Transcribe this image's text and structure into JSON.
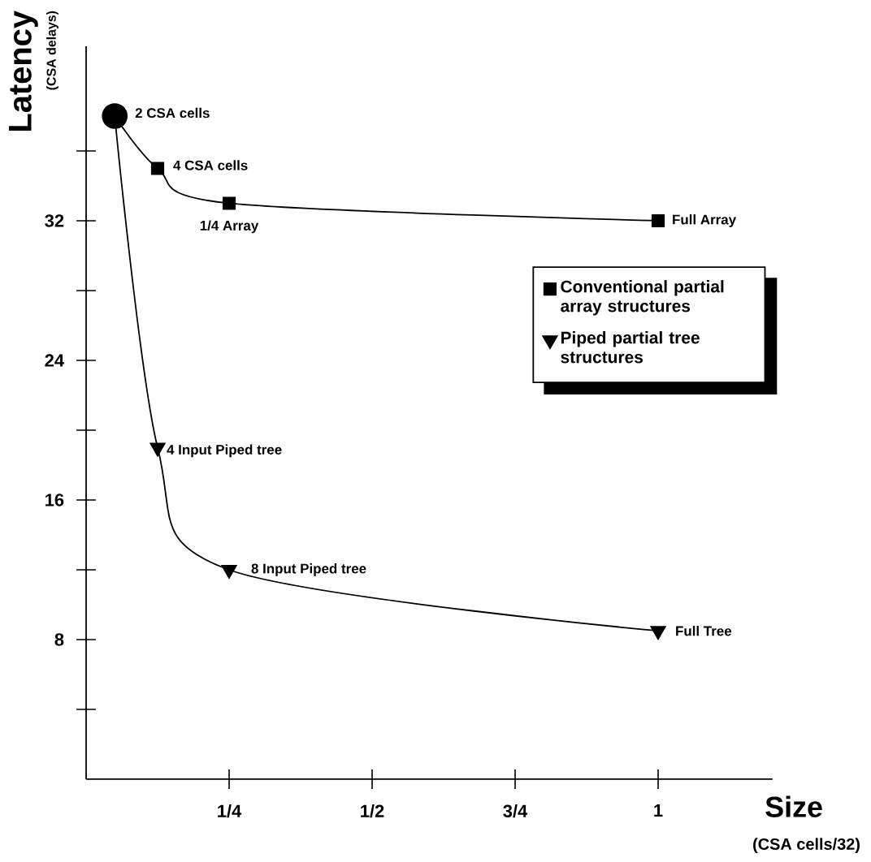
{
  "chart_data": {
    "type": "line",
    "xlabel": "Size",
    "ylabel": "Latency",
    "xlim": [
      0,
      1.2
    ],
    "ylim": [
      0,
      42
    ],
    "xticks": [
      {
        "value": 0.25,
        "label": "1/4"
      },
      {
        "value": 0.5,
        "label": "1/2"
      },
      {
        "value": 0.75,
        "label": "3/4"
      },
      1
    ],
    "yticks": [
      {
        "value": 4,
        "label": null
      },
      8,
      {
        "value": 12,
        "label": null
      },
      16,
      {
        "value": 20,
        "label": null
      },
      24,
      {
        "value": 28,
        "label": null
      },
      32,
      {
        "value": 36,
        "label": null
      }
    ],
    "series": [
      {
        "name": "Conventional partial array structures",
        "color": "#000000",
        "marker": "square",
        "x": [
          0.05,
          0.125,
          0.25,
          1
        ],
        "values": [
          38,
          35,
          33,
          32
        ]
      },
      {
        "name": "Piped partial tree structures",
        "color": "#000000",
        "marker": "triangle",
        "x": [
          0.05,
          0.125,
          0.25,
          1
        ],
        "values": [
          38,
          19,
          12,
          8.5
        ]
      },
      {
        "type": "scatter",
        "color": "#000000",
        "marker": "circle",
        "x": [
          0.05
        ],
        "values": [
          38
        ]
      }
    ],
    "legend": "right",
    "grid": false,
    "annotations": [
      {
        "text": "2 CSA cells",
        "x": 0.05,
        "y": 38
      },
      {
        "text": "4 CSA cells",
        "x": 0.125,
        "y": 35
      },
      {
        "text": "1/4 Array",
        "x": 0.25,
        "y": 33
      },
      {
        "text": "Full Array",
        "x": 1,
        "y": 32
      },
      {
        "text": "4 Input Piped tree",
        "x": 0.125,
        "y": 19
      },
      {
        "text": "8 Input Piped tree",
        "x": 0.25,
        "y": 12
      },
      {
        "text": "Full Tree",
        "x": 1,
        "y": 8.5
      },
      "(CSA delays)",
      "(CSA cells/32)"
    ]
  }
}
